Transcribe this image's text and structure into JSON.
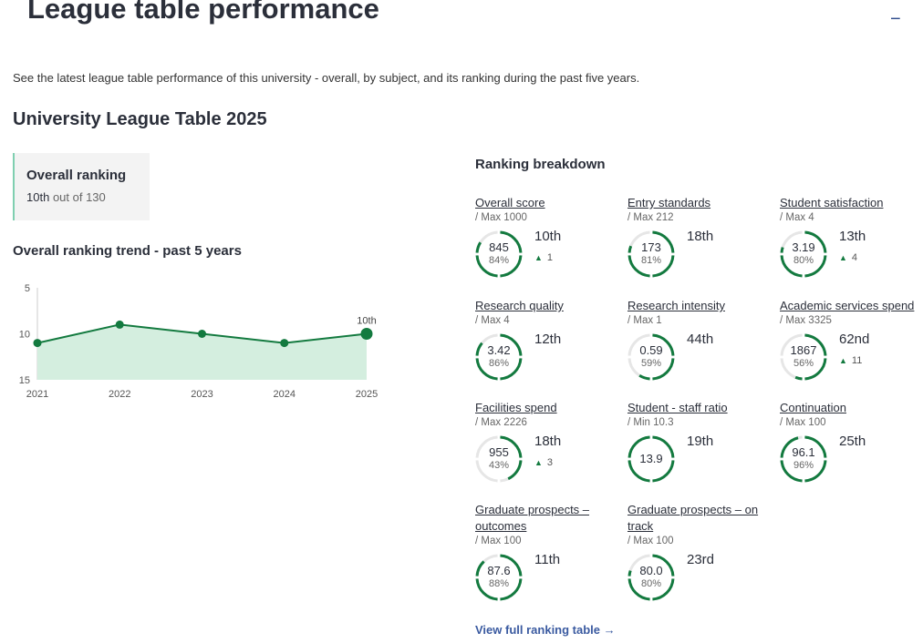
{
  "header": {
    "title": "League table performance",
    "collapse_icon": "minus-icon"
  },
  "intro": "See the latest league table performance of this university - overall, by subject, and its ranking during the past five years.",
  "table_title": "University League Table 2025",
  "overall": {
    "title": "Overall ranking",
    "rank": "10th",
    "out_of": "out of 130"
  },
  "trend_title": "Overall ranking trend - past 5 years",
  "chart_data": {
    "type": "area",
    "x": [
      "2021",
      "2022",
      "2023",
      "2024",
      "2025"
    ],
    "values": [
      11,
      9,
      10,
      11,
      10
    ],
    "ylim": [
      15,
      5
    ],
    "yticks": [
      5,
      10,
      15
    ],
    "y_inverted": true,
    "annotation": "10th",
    "colors": {
      "line": "#137a3f",
      "fill": "#d4eedf"
    }
  },
  "breakdown": {
    "title": "Ranking breakdown",
    "items": [
      {
        "label": "Overall score",
        "max": "/ Max 1000",
        "score": "845",
        "pct": "84%",
        "pct_value": 84,
        "rank": "10th",
        "change": "1"
      },
      {
        "label": "Entry standards",
        "max": "/ Max 212",
        "score": "173",
        "pct": "81%",
        "pct_value": 81,
        "rank": "18th",
        "change": ""
      },
      {
        "label": "Student satisfaction",
        "max": "/ Max 4",
        "score": "3.19",
        "pct": "80%",
        "pct_value": 80,
        "rank": "13th",
        "change": "4"
      },
      {
        "label": "Research quality",
        "max": "/ Max 4",
        "score": "3.42",
        "pct": "86%",
        "pct_value": 86,
        "rank": "12th",
        "change": ""
      },
      {
        "label": "Research intensity",
        "max": "/ Max 1",
        "score": "0.59",
        "pct": "59%",
        "pct_value": 59,
        "rank": "44th",
        "change": ""
      },
      {
        "label": "Academic services spend",
        "max": "/ Max 3325",
        "score": "1867",
        "pct": "56%",
        "pct_value": 56,
        "rank": "62nd",
        "change": "11"
      },
      {
        "label": "Facilities spend",
        "max": "/ Max 2226",
        "score": "955",
        "pct": "43%",
        "pct_value": 43,
        "rank": "18th",
        "change": "3"
      },
      {
        "label": "Student - staff ratio",
        "max": "/ Min 10.3",
        "score": "13.9",
        "pct": "",
        "pct_value": 100,
        "rank": "19th",
        "change": ""
      },
      {
        "label": "Continuation",
        "max": "/ Max 100",
        "score": "96.1",
        "pct": "96%",
        "pct_value": 96,
        "rank": "25th",
        "change": ""
      },
      {
        "label": "Graduate prospects – outcomes",
        "max": "/ Max 100",
        "score": "87.6",
        "pct": "88%",
        "pct_value": 88,
        "rank": "11th",
        "change": ""
      },
      {
        "label": "Graduate prospects – on track",
        "max": "/ Max 100",
        "score": "80.0",
        "pct": "80%",
        "pct_value": 80,
        "rank": "23rd",
        "change": ""
      }
    ]
  },
  "link": "View full ranking table →",
  "colors": {
    "accent": "#137a3f",
    "link": "#3a5aa0"
  }
}
